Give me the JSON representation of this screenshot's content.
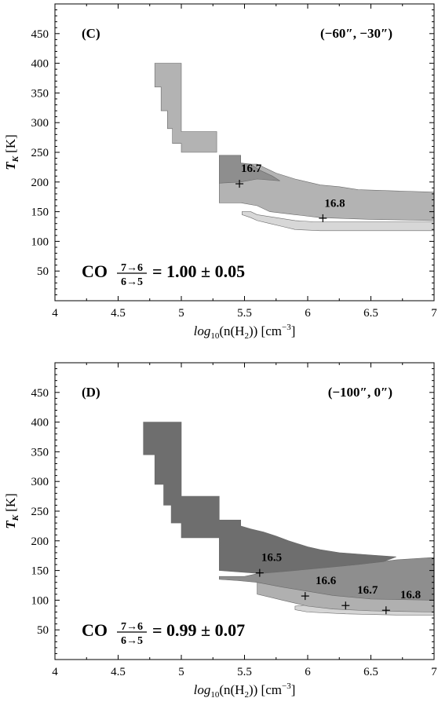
{
  "chart_data": [
    {
      "type": "area",
      "panel_label": "(C)",
      "position_label": "(−60″, −30″)",
      "xlabel_main": "log",
      "xlabel_sub": "10",
      "xlabel_tail": "(n(H",
      "xlabel_sub2": "2",
      "xlabel_end": ")) [cm",
      "xlabel_exp": "−3",
      "xlabel_close": "]",
      "ylabel_main": "T",
      "ylabel_sub": "K",
      "ylabel_tail": " [K]",
      "xlim": [
        4,
        7
      ],
      "ylim": [
        0,
        500
      ],
      "xticks": [
        "4",
        "4.5",
        "5",
        "5.5",
        "6",
        "6.5",
        "7"
      ],
      "yticks": [
        "50",
        "100",
        "150",
        "200",
        "250",
        "300",
        "350",
        "400",
        "450"
      ],
      "ratio": {
        "prefix": "CO",
        "numerator": "7→6",
        "denominator": "6→5",
        "value": "= 1.00 ± 0.05"
      },
      "colors": {
        "dark": "#8e8e8e",
        "mid": "#b3b3b3",
        "light": "#d7d7d7"
      },
      "regions": [
        {
          "shade": "light",
          "points": [
            [
              5.48,
              150
            ],
            [
              5.55,
              150
            ],
            [
              5.6,
              145
            ],
            [
              5.75,
              140
            ],
            [
              5.9,
              135
            ],
            [
              6.05,
              133
            ],
            [
              7.0,
              133
            ],
            [
              7.0,
              118
            ],
            [
              6.1,
              118
            ],
            [
              5.9,
              120
            ],
            [
              5.8,
              125
            ],
            [
              5.7,
              130
            ],
            [
              5.6,
              135
            ],
            [
              5.55,
              140
            ],
            [
              5.48,
              145
            ]
          ]
        },
        {
          "shade": "mid",
          "points": [
            [
              5.3,
              245
            ],
            [
              5.47,
              245
            ],
            [
              5.47,
              230
            ],
            [
              5.6,
              230
            ],
            [
              5.65,
              225
            ],
            [
              5.7,
              220
            ],
            [
              5.75,
              215
            ],
            [
              5.9,
              205
            ],
            [
              6.0,
              200
            ],
            [
              6.1,
              195
            ],
            [
              6.25,
              192
            ],
            [
              6.4,
              187
            ],
            [
              7.0,
              183
            ],
            [
              7.0,
              135
            ],
            [
              6.5,
              137
            ],
            [
              6.1,
              140
            ],
            [
              5.9,
              145
            ],
            [
              5.7,
              150
            ],
            [
              5.6,
              160
            ],
            [
              5.47,
              165
            ],
            [
              5.3,
              165
            ]
          ]
        },
        {
          "shade": "dark",
          "points": [
            [
              5.3,
              245
            ],
            [
              5.47,
              245
            ],
            [
              5.47,
              232
            ],
            [
              5.55,
              230
            ],
            [
              5.62,
              220
            ],
            [
              5.72,
              210
            ],
            [
              5.78,
              202
            ],
            [
              5.6,
              205
            ],
            [
              5.47,
              200
            ],
            [
              5.3,
              198
            ]
          ]
        },
        {
          "shade": "mid",
          "points": [
            [
              4.79,
              400
            ],
            [
              5.0,
              400
            ],
            [
              5.0,
              285
            ],
            [
              5.28,
              285
            ],
            [
              5.28,
              250
            ],
            [
              5.0,
              250
            ],
            [
              5.0,
              265
            ],
            [
              4.93,
              265
            ],
            [
              4.93,
              290
            ],
            [
              4.89,
              290
            ],
            [
              4.89,
              320
            ],
            [
              4.84,
              320
            ],
            [
              4.84,
              360
            ],
            [
              4.79,
              360
            ]
          ]
        }
      ],
      "contours": [
        {
          "label": "16.7",
          "marker": [
            5.46,
            197
          ],
          "label_at": [
            5.46,
            217
          ]
        },
        {
          "label": "16.8",
          "marker": [
            6.12,
            139
          ],
          "label_at": [
            6.12,
            158
          ]
        }
      ]
    },
    {
      "type": "area",
      "panel_label": "(D)",
      "position_label": "(−100″, 0″)",
      "xlabel_main": "log",
      "xlabel_sub": "10",
      "xlabel_tail": "(n(H",
      "xlabel_sub2": "2",
      "xlabel_end": ")) [cm",
      "xlabel_exp": "−3",
      "xlabel_close": "]",
      "ylabel_main": "T",
      "ylabel_sub": "K",
      "ylabel_tail": " [K]",
      "xlim": [
        4,
        7
      ],
      "ylim": [
        0,
        500
      ],
      "xticks": [
        "4",
        "4.5",
        "5",
        "5.5",
        "6",
        "6.5",
        "7"
      ],
      "yticks": [
        "50",
        "100",
        "150",
        "200",
        "250",
        "300",
        "350",
        "400",
        "450"
      ],
      "ratio": {
        "prefix": "CO",
        "numerator": "7→6",
        "denominator": "6→5",
        "value": "= 0.99 ± 0.07"
      },
      "colors": {
        "darkest": "#6e6e6e",
        "dark": "#8e8e8e",
        "mid": "#b0b0b0",
        "light": "#d5d5d5"
      },
      "regions": [
        {
          "shade": "light",
          "points": [
            [
              6.0,
              92
            ],
            [
              6.3,
              90
            ],
            [
              7.0,
              88
            ],
            [
              7.0,
              75
            ],
            [
              6.7,
              75
            ],
            [
              6.3,
              77
            ],
            [
              6.0,
              80
            ],
            [
              5.9,
              84
            ],
            [
              5.9,
              90
            ]
          ]
        },
        {
          "shade": "mid",
          "points": [
            [
              5.6,
              130
            ],
            [
              5.75,
              125
            ],
            [
              5.9,
              120
            ],
            [
              6.1,
              115
            ],
            [
              6.5,
              105
            ],
            [
              7.0,
              103
            ],
            [
              7.0,
              80
            ],
            [
              6.5,
              82
            ],
            [
              6.2,
              85
            ],
            [
              6.0,
              90
            ],
            [
              5.9,
              95
            ],
            [
              5.8,
              100
            ],
            [
              5.6,
              110
            ]
          ]
        },
        {
          "shade": "dark",
          "points": [
            [
              5.3,
              140
            ],
            [
              5.5,
              140
            ],
            [
              5.65,
              147
            ],
            [
              5.85,
              150
            ],
            [
              6.1,
              155
            ],
            [
              6.4,
              160
            ],
            [
              6.7,
              168
            ],
            [
              7.0,
              172
            ],
            [
              7.0,
              100
            ],
            [
              6.5,
              102
            ],
            [
              6.2,
              108
            ],
            [
              6.0,
              115
            ],
            [
              5.8,
              122
            ],
            [
              5.6,
              130
            ],
            [
              5.45,
              133
            ],
            [
              5.3,
              135
            ]
          ]
        },
        {
          "shade": "darkest",
          "points": [
            [
              4.7,
              400
            ],
            [
              5.0,
              400
            ],
            [
              5.0,
              275
            ],
            [
              5.3,
              275
            ],
            [
              5.3,
              235
            ],
            [
              5.47,
              235
            ],
            [
              5.47,
              225
            ],
            [
              5.55,
              220
            ],
            [
              5.65,
              215
            ],
            [
              5.75,
              208
            ],
            [
              5.85,
              200
            ],
            [
              6.0,
              190
            ],
            [
              6.1,
              185
            ],
            [
              6.25,
              180
            ],
            [
              6.5,
              176
            ],
            [
              6.7,
              173
            ],
            [
              6.6,
              165
            ],
            [
              6.3,
              158
            ],
            [
              6.0,
              152
            ],
            [
              5.8,
              148
            ],
            [
              5.62,
              145
            ],
            [
              5.3,
              150
            ],
            [
              5.3,
              205
            ],
            [
              5.0,
              205
            ],
            [
              5.0,
              230
            ],
            [
              4.92,
              230
            ],
            [
              4.92,
              260
            ],
            [
              4.86,
              260
            ],
            [
              4.86,
              295
            ],
            [
              4.79,
              295
            ],
            [
              4.79,
              345
            ],
            [
              4.7,
              345
            ]
          ]
        }
      ],
      "contours": [
        {
          "label": "16.5",
          "marker": [
            5.62,
            146
          ],
          "label_at": [
            5.62,
            166
          ]
        },
        {
          "label": "16.6",
          "marker": [
            5.98,
            107
          ],
          "label_at": [
            6.05,
            127
          ]
        },
        {
          "label": "16.7",
          "marker": [
            6.3,
            91
          ],
          "label_at": [
            6.38,
            111
          ]
        },
        {
          "label": "16.8",
          "marker": [
            6.62,
            83
          ],
          "label_at": [
            6.72,
            103
          ]
        }
      ]
    }
  ]
}
